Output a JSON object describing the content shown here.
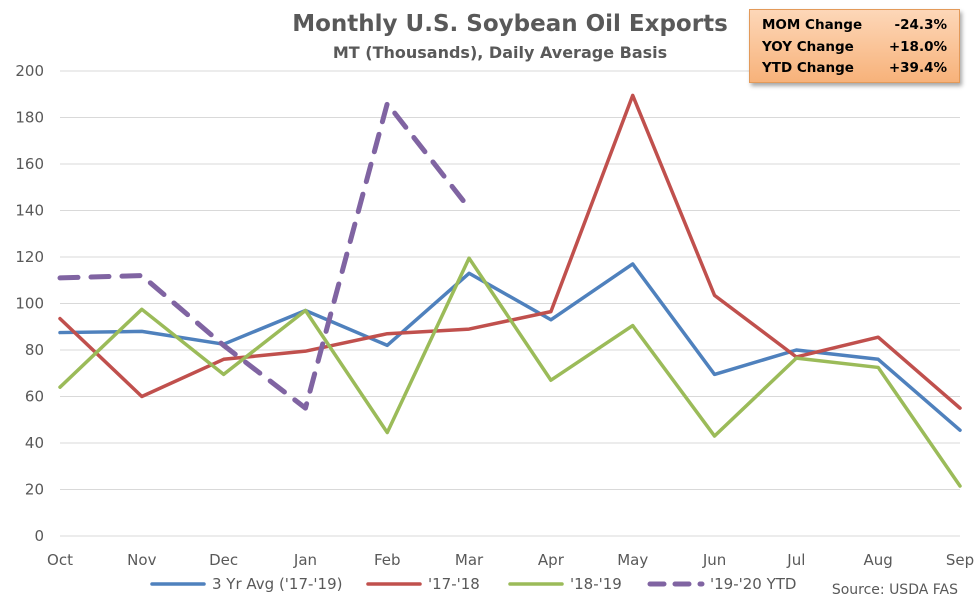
{
  "chart_data": {
    "type": "line",
    "title": "Monthly U.S. Soybean Oil Exports",
    "subtitle": "MT (Thousands), Daily Average Basis",
    "categories": [
      "Oct",
      "Nov",
      "Dec",
      "Jan",
      "Feb",
      "Mar",
      "Apr",
      "May",
      "Jun",
      "Jul",
      "Aug",
      "Sep"
    ],
    "ylim": [
      0,
      200
    ],
    "yticks": [
      0,
      20,
      40,
      60,
      80,
      100,
      120,
      140,
      160,
      180,
      200
    ],
    "grid": true,
    "legend_position": "bottom",
    "series": [
      {
        "name": "3 Yr Avg ('17-'19)",
        "color": "#4f81bd",
        "dashed": false,
        "values": [
          87.5,
          88,
          82.5,
          97,
          82,
          113,
          93,
          117,
          69.5,
          80,
          76,
          45.5
        ]
      },
      {
        "name": "'17-'18",
        "color": "#c0504d",
        "dashed": false,
        "values": [
          93.5,
          60,
          76,
          79.5,
          87,
          89,
          96.5,
          189.5,
          103.5,
          77,
          85.5,
          55
        ]
      },
      {
        "name": "'18-'19",
        "color": "#9bbb59",
        "dashed": false,
        "values": [
          64,
          97.5,
          69.5,
          97,
          44.5,
          119.5,
          67,
          90.5,
          43,
          76.5,
          72.5,
          21.5
        ]
      },
      {
        "name": "'19-'20 YTD",
        "color": "#8064a2",
        "dashed": true,
        "values": [
          111,
          112,
          82,
          55,
          186,
          141,
          null,
          null,
          null,
          null,
          null,
          null
        ]
      }
    ]
  },
  "stats": [
    {
      "label": "MOM Change",
      "value": "-24.3%"
    },
    {
      "label": "YOY Change",
      "value": "+18.0%"
    },
    {
      "label": "YTD Change",
      "value": "+39.4%"
    }
  ],
  "source": "Source: USDA FAS"
}
